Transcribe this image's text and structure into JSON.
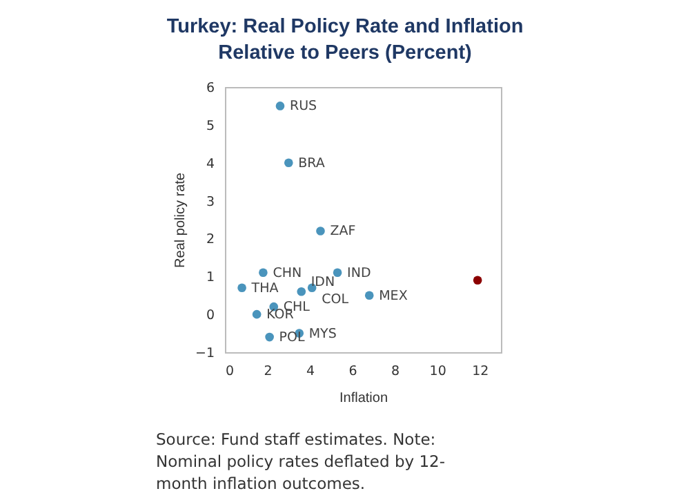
{
  "chart_data": {
    "type": "scatter",
    "title": "Turkey: Real Policy Rate and Inflation Relative to Peers (Percent)",
    "xlabel": "Inflation",
    "ylabel": "Real policy rate",
    "series": [
      {
        "color": "#4a94bc",
        "x": [
          2.6,
          3.0,
          4.5,
          1.8,
          5.3,
          0.8,
          3.6,
          4.1,
          6.8,
          2.3,
          1.5,
          3.5,
          2.1
        ],
        "values": [
          5.5,
          4.0,
          2.2,
          1.1,
          1.1,
          0.7,
          0.6,
          0.7,
          0.5,
          0.2,
          0.0,
          -0.5,
          -0.6
        ]
      },
      {
        "color": "#8b0000",
        "x": [
          11.9
        ],
        "values": [
          0.9
        ]
      }
    ],
    "annotations": [
      {
        "text": "RUS",
        "x": 2.6,
        "y": 5.5
      },
      {
        "text": "BRA",
        "x": 3.0,
        "y": 4.0
      },
      {
        "text": "ZAF",
        "x": 4.5,
        "y": 2.2
      },
      {
        "text": "CHN",
        "x": 1.8,
        "y": 1.1
      },
      {
        "text": "IND",
        "x": 5.3,
        "y": 1.1
      },
      {
        "text": "THA",
        "x": 0.8,
        "y": 0.7
      },
      {
        "text": "IDN",
        "x": 3.6,
        "y": 0.6
      },
      {
        "text": "COL",
        "x": 4.1,
        "y": 0.7
      },
      {
        "text": "MEX",
        "x": 6.8,
        "y": 0.5
      },
      {
        "text": "CHL",
        "x": 2.3,
        "y": 0.2
      },
      {
        "text": "KOR",
        "x": 1.5,
        "y": 0.0
      },
      {
        "text": "MYS",
        "x": 3.5,
        "y": -0.5
      },
      {
        "text": "POL",
        "x": 2.1,
        "y": -0.6
      },
      "Source: Fund staff estimates. Note: Nominal policy rates deflated by 12-month inflation outcomes."
    ],
    "xlim": [
      0,
      13
    ],
    "xticks": [
      0,
      2,
      4,
      6,
      8,
      10,
      12
    ],
    "ylim": [
      -1,
      6
    ],
    "yticks": [
      -1,
      0,
      1,
      2,
      3,
      4,
      5,
      6
    ],
    "marker": "circle",
    "grid": false,
    "legend": false
  }
}
